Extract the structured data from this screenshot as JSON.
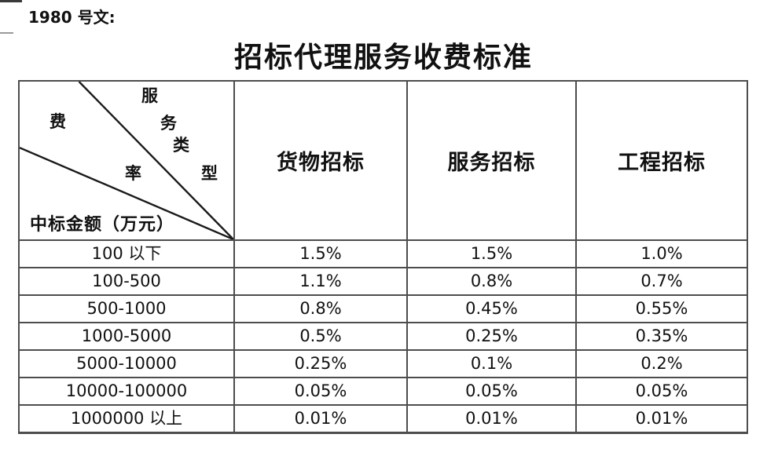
{
  "page": {
    "doc_ref": "1980 号文:",
    "title": "招标代理服务收费标准"
  },
  "colors": {
    "text": "#111111",
    "table_border": "#4d4d4d",
    "diagonal_line": "#1a1a1a",
    "background": "#ffffff"
  },
  "table": {
    "corner": {
      "service_type_chars": [
        "服",
        "务",
        "类",
        "型"
      ],
      "service_type_label": "服务类型",
      "fee_rate_chars": [
        "费",
        "率"
      ],
      "fee_rate_label": "费率",
      "bottom_label": "中标金额（万元）"
    },
    "columns": [
      "货物招标",
      "服务招标",
      "工程招标"
    ],
    "rows": [
      {
        "range": "100 以下",
        "values": [
          "1.5%",
          "1.5%",
          "1.0%"
        ]
      },
      {
        "range": "100-500",
        "values": [
          "1.1%",
          "0.8%",
          "0.7%"
        ]
      },
      {
        "range": "500-1000",
        "values": [
          "0.8%",
          "0.45%",
          "0.55%"
        ]
      },
      {
        "range": "1000-5000",
        "values": [
          "0.5%",
          "0.25%",
          "0.35%"
        ]
      },
      {
        "range": "5000-10000",
        "values": [
          "0.25%",
          "0.1%",
          "0.2%"
        ]
      },
      {
        "range": "10000-100000",
        "values": [
          "0.05%",
          "0.05%",
          "0.05%"
        ]
      },
      {
        "range": "1000000 以上",
        "values": [
          "0.01%",
          "0.01%",
          "0.01%"
        ]
      }
    ]
  }
}
